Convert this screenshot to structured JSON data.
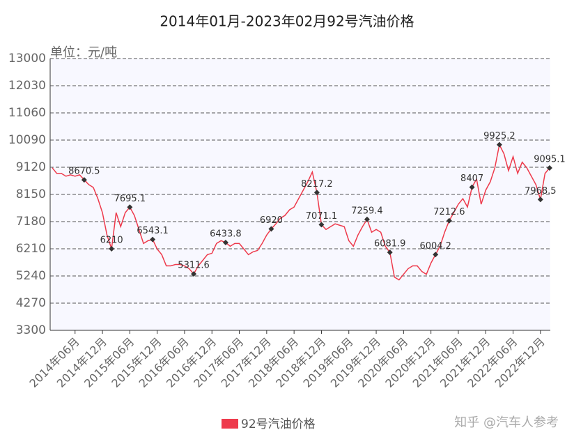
{
  "chart_data": {
    "type": "line",
    "title": "2014年01月-2023年02月92号汽油价格",
    "unit_label": "单位：元/吨",
    "watermark": "知乎 @汽车人参考",
    "categories": [
      null,
      null,
      null,
      null,
      null,
      "2014年06月",
      null,
      null,
      null,
      null,
      null,
      "2014年12月",
      null,
      null,
      null,
      null,
      null,
      "2015年06月",
      null,
      null,
      null,
      null,
      null,
      "2015年12月",
      null,
      null,
      null,
      null,
      null,
      "2016年06月",
      null,
      null,
      null,
      null,
      null,
      "2016年12月",
      null,
      null,
      null,
      null,
      null,
      "2017年06月",
      null,
      null,
      null,
      null,
      null,
      "2017年12月",
      null,
      null,
      null,
      null,
      null,
      "2018年06月",
      null,
      null,
      null,
      null,
      null,
      "2018年12月",
      null,
      null,
      null,
      null,
      null,
      "2019年06月",
      null,
      null,
      null,
      null,
      null,
      "2019年12月",
      null,
      null,
      null,
      null,
      null,
      "2020年06月",
      null,
      null,
      null,
      null,
      null,
      "2020年12月",
      null,
      null,
      null,
      null,
      null,
      "2021年06月",
      null,
      null,
      null,
      null,
      null,
      "2021年12月",
      null,
      null,
      null,
      null,
      null,
      "2022年06月",
      null,
      null,
      null,
      null,
      null,
      "2022年12月",
      null,
      null
    ],
    "series": [
      {
        "name": "92号汽油价格",
        "color": "#ee3a4c",
        "values": [
          9100,
          8900,
          8900,
          8800,
          8850,
          8800,
          8850,
          8670.5,
          8500,
          8400,
          8000,
          7500,
          6700,
          6210,
          7500,
          7000,
          7500,
          7695.1,
          7400,
          6900,
          6400,
          6500,
          6543.1,
          6200,
          6000,
          5600,
          5600,
          5650,
          5650,
          5600,
          5500,
          5311.6,
          5600,
          5800,
          6000,
          6050,
          6400,
          6500,
          6433.8,
          6300,
          6400,
          6400,
          6200,
          6000,
          6100,
          6150,
          6400,
          6700,
          6920,
          7100,
          7300,
          7400,
          7600,
          7700,
          8000,
          8300,
          8600,
          8950,
          8217.2,
          7071.1,
          6900,
          7000,
          7100,
          7050,
          7000,
          6500,
          6300,
          6700,
          7000,
          7259.4,
          6800,
          6900,
          6800,
          6300,
          6081.9,
          5200,
          5100,
          5300,
          5500,
          5600,
          5600,
          5400,
          5300,
          5700,
          6004.2,
          6300,
          6800,
          7212.6,
          7500,
          7800,
          8000,
          7700,
          8407,
          8700,
          7800,
          8300,
          8600,
          9100,
          9925.2,
          9600,
          9000,
          9500,
          8900,
          9300,
          9100,
          8800,
          8500,
          7968.5,
          8900,
          9095.1
        ]
      }
    ],
    "marker_indices": [
      7,
      13,
      17,
      22,
      31,
      38,
      48,
      58,
      59,
      69,
      74,
      84,
      87,
      92,
      98,
      107,
      109
    ],
    "ylim": [
      3300,
      13000
    ],
    "yticks": [
      3300,
      4270,
      5240,
      6210,
      7180,
      8150,
      9120,
      10090,
      11060,
      12030,
      13000
    ],
    "grid": true
  }
}
